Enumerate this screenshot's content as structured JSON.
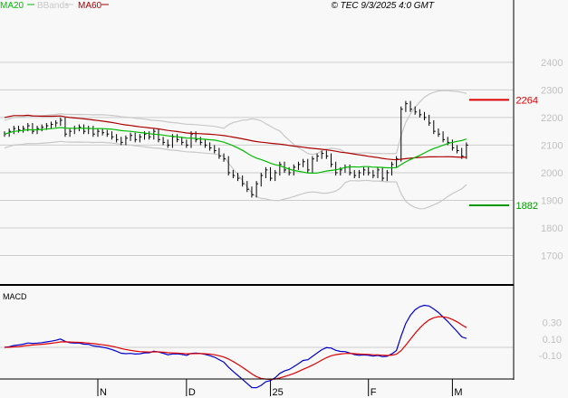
{
  "legend": {
    "ma20": "MA20",
    "bbands": "BBands",
    "ma60": "MA60"
  },
  "copyright": "© TEC 9/3/2025 4:0 GMT",
  "macd_label": "MACD",
  "colors": {
    "ma20": "#00bb00",
    "ma60": "#aa0000",
    "bands": "#c8c8c8",
    "macd": "#0000cc",
    "signal": "#dd0000",
    "grid": "#cccccc",
    "axis_text": "#c0c0c0"
  },
  "chart_data": {
    "type": "line",
    "price_axis": {
      "ticks": [
        2400,
        2300,
        2200,
        2100,
        2000,
        1900,
        1800,
        1700
      ],
      "labels": [
        "2400",
        "2300",
        "2200",
        "2100",
        "2000",
        "1900",
        "1800",
        "1700"
      ],
      "ylim": [
        1610,
        2560
      ]
    },
    "macd_axis": {
      "labels": [
        "0.30",
        "0.10",
        "-0.10"
      ],
      "values": [
        0.3,
        0.1,
        -0.1
      ],
      "ylim": [
        -0.36,
        0.72
      ]
    },
    "x_ticks": [
      {
        "label": "N",
        "bar": 20
      },
      {
        "label": "D",
        "bar": 39
      },
      {
        "label": "25",
        "bar": 57
      },
      {
        "label": "F",
        "bar": 78
      },
      {
        "label": "M",
        "bar": 96
      }
    ],
    "closes": [
      2140,
      2150,
      2160,
      2155,
      2160,
      2170,
      2150,
      2160,
      2165,
      2170,
      2175,
      2180,
      2190,
      2140,
      2150,
      2160,
      2165,
      2150,
      2160,
      2140,
      2150,
      2145,
      2140,
      2130,
      2120,
      2110,
      2125,
      2135,
      2120,
      2130,
      2140,
      2130,
      2150,
      2120,
      2110,
      2100,
      2130,
      2120,
      2110,
      2100,
      2140,
      2120,
      2110,
      2100,
      2090,
      2080,
      2060,
      2050,
      2000,
      1990,
      1980,
      1960,
      1940,
      1920,
      1960,
      1990,
      2010,
      1980,
      2000,
      2030,
      2010,
      2000,
      2020,
      2030,
      2040,
      2010,
      2050,
      2060,
      2070,
      2060,
      2030,
      2000,
      2010,
      2020,
      2000,
      1990,
      2000,
      2010,
      2000,
      1990,
      2010,
      1980,
      2000,
      2030,
      2050,
      2230,
      2250,
      2230,
      2220,
      2210,
      2200,
      2180,
      2150,
      2140,
      2120,
      2110,
      2090,
      2080,
      2060,
      2100
    ],
    "levels": [
      {
        "label": "2264",
        "value": 2264,
        "color": "#dd0000"
      },
      {
        "label": "1882",
        "value": 1882,
        "color": "#009900"
      }
    ]
  }
}
